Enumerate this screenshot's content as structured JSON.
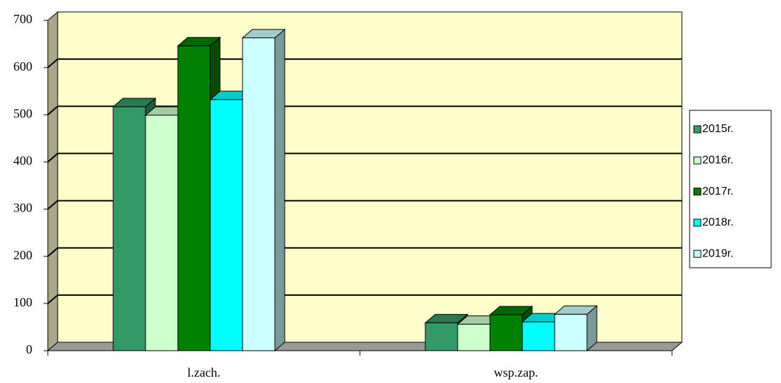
{
  "chart_data": {
    "type": "bar",
    "categories": [
      "l.zach.",
      "wsp.zap."
    ],
    "series": [
      {
        "name": "2015r.",
        "color": "#339966",
        "values": [
          517,
          59
        ]
      },
      {
        "name": "2016r.",
        "color": "#ccffcc",
        "values": [
          499,
          56
        ]
      },
      {
        "name": "2017r.",
        "color": "#008000",
        "values": [
          646,
          76
        ]
      },
      {
        "name": "2018r.",
        "color": "#00ffff",
        "values": [
          532,
          61
        ]
      },
      {
        "name": "2019r.",
        "color": "#ccffff",
        "values": [
          663,
          77
        ]
      }
    ],
    "ylim": [
      0,
      700
    ],
    "yticks": [
      0,
      100,
      200,
      300,
      400,
      500,
      600,
      700
    ],
    "grid": true,
    "legend": "right"
  }
}
